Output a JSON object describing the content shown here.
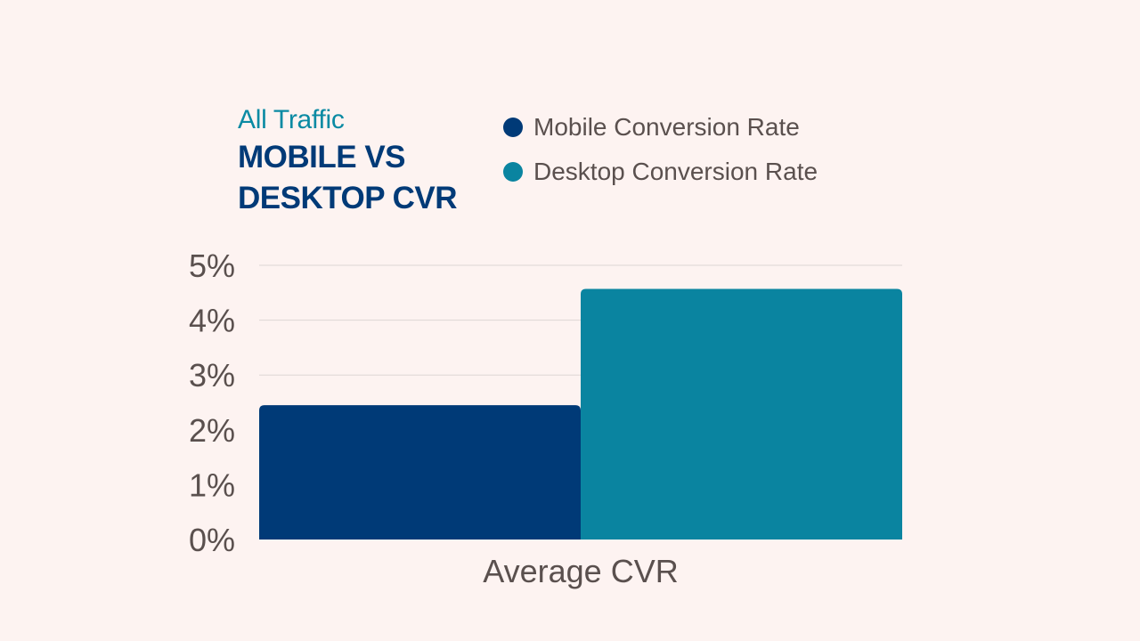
{
  "chart_data": {
    "type": "bar",
    "subtitle": "All Traffic",
    "title_lines": [
      "MOBILE VS",
      "DESKTOP CVR"
    ],
    "categories": [
      "Average CVR"
    ],
    "series": [
      {
        "name": "Mobile Conversion Rate",
        "values": [
          2.45
        ],
        "color": "#003a77"
      },
      {
        "name": "Desktop Conversion Rate",
        "values": [
          4.57
        ],
        "color": "#0a84a0"
      }
    ],
    "ylim": [
      0,
      5
    ],
    "yticks": [
      "0%",
      "1%",
      "2%",
      "3%",
      "4%",
      "5%"
    ],
    "grid": true,
    "legend_position": "top-right"
  }
}
